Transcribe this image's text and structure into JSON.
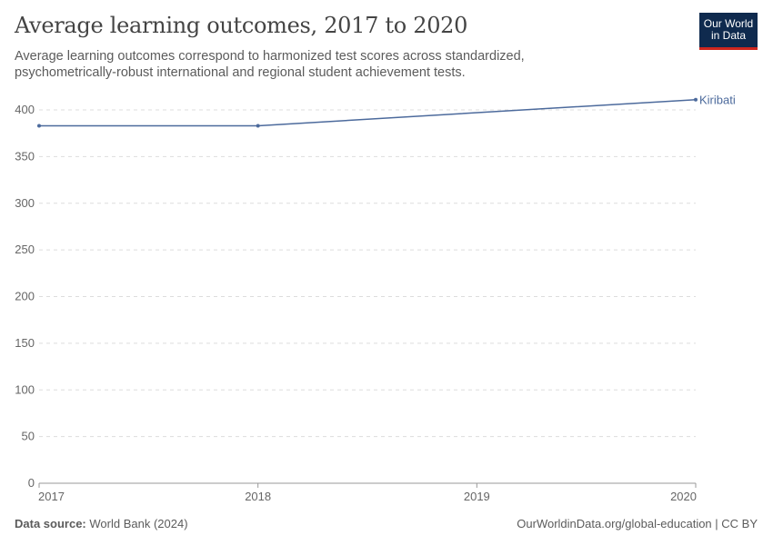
{
  "header": {
    "title": "Average learning outcomes, 2017 to 2020",
    "subtitle": "Average learning outcomes correspond to harmonized test scores across standardized, psychometrically-robust international and regional student achievement tests.",
    "logo_line1": "Our World",
    "logo_line2": "in Data"
  },
  "footer": {
    "source_label": "Data source:",
    "source": "World Bank (2024)",
    "url": "OurWorldinData.org/global-education | CC BY"
  },
  "chart_data": {
    "type": "line",
    "title": "Average learning outcomes, 2017 to 2020",
    "x": [
      2017,
      2018,
      2020
    ],
    "x_ticks": [
      "2017",
      "2018",
      "2019",
      "2020"
    ],
    "y_ticks": [
      "0",
      "50",
      "100",
      "150",
      "200",
      "250",
      "300",
      "350",
      "400"
    ],
    "ylim": [
      0,
      400
    ],
    "xlim": [
      2017,
      2020
    ],
    "grid": "horizontal dashed",
    "series": [
      {
        "name": "Kiribati",
        "values": [
          383,
          383,
          411
        ],
        "color": "#4c6a9c"
      }
    ]
  }
}
